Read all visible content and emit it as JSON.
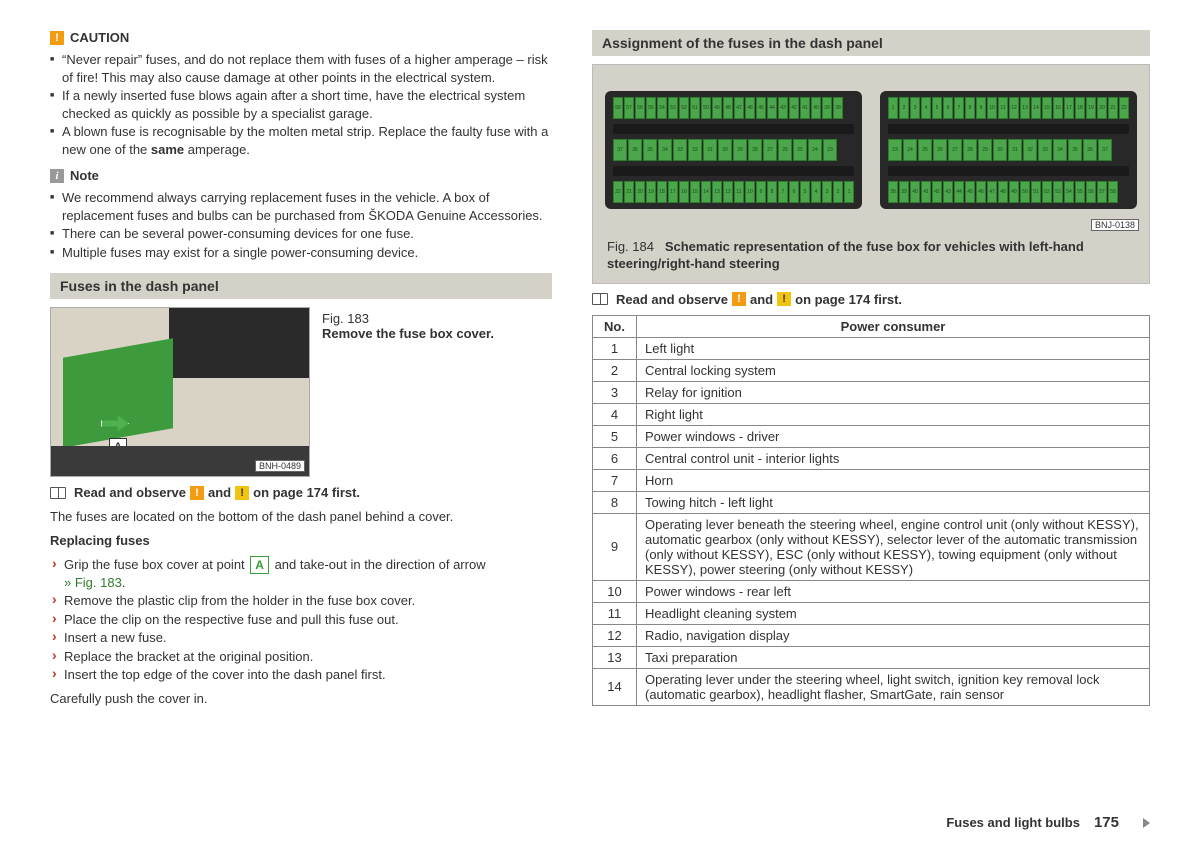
{
  "left": {
    "caution": {
      "heading": "CAUTION",
      "items": [
        "“Never repair” fuses, and do not replace them with fuses of a higher amperage – risk of fire! This may also cause damage at other points in the electrical system.",
        "If a newly inserted fuse blows again after a short time, have the electrical system checked as quickly as possible by a specialist garage.",
        "A blown fuse is recognisable by the molten metal strip. Replace the faulty fuse with a new one of the same amperage."
      ]
    },
    "note": {
      "heading": "Note",
      "items": [
        "We recommend always carrying replacement fuses in the vehicle. A box of replacement fuses and bulbs can be purchased from ŠKODA Genuine Accessories.",
        "There can be several power-consuming devices for one fuse.",
        "Multiple fuses may exist for a single power-consuming device."
      ]
    },
    "section1_title": "Fuses in the dash panel",
    "fig183": {
      "num": "Fig. 183",
      "caption": "Remove the fuse box cover.",
      "label": "BNH-0489"
    },
    "read_observe_a": "Read and observe",
    "read_observe_b": "and",
    "read_observe_c": "on page 174 first.",
    "intro": "The fuses are located on the bottom of the dash panel behind a cover.",
    "replacing_heading": "Replacing fuses",
    "step1_a": "Grip the fuse box cover at point",
    "step1_b": "and take-out in the direction of arrow",
    "step1_link": "» Fig. 183",
    "steps_rest": [
      "Remove the plastic clip from the holder in the fuse box cover.",
      "Place the clip on the respective fuse and pull this fuse out.",
      "Insert a new fuse.",
      "Replace the bracket at the original position.",
      "Insert the top edge of the cover into the dash panel first."
    ],
    "outro": "Carefully push the cover in."
  },
  "right": {
    "section2_title": "Assignment of the fuses in the dash panel",
    "fig184": {
      "num": "Fig. 184",
      "caption": "Schematic representation of the fuse box for vehicles with left-hand steering/right-hand steering",
      "label": "BNJ-0138"
    },
    "read_observe_a": "Read and observe",
    "read_observe_b": "and",
    "read_observe_c": "on page 174 first.",
    "table": {
      "headers": [
        "No.",
        "Power consumer"
      ],
      "rows": [
        [
          "1",
          "Left light"
        ],
        [
          "2",
          "Central locking system"
        ],
        [
          "3",
          "Relay for ignition"
        ],
        [
          "4",
          "Right light"
        ],
        [
          "5",
          "Power windows - driver"
        ],
        [
          "6",
          "Central control unit - interior lights"
        ],
        [
          "7",
          "Horn"
        ],
        [
          "8",
          "Towing hitch - left light"
        ],
        [
          "9",
          "Operating lever beneath the steering wheel, engine control unit (only without KESSY), automatic gearbox (only without KESSY), selector lever of the automatic transmission (only without KESSY), ESC (only without KESSY), towing equipment (only without KESSY), power steering (only without KESSY)"
        ],
        [
          "10",
          "Power windows - rear left"
        ],
        [
          "11",
          "Headlight cleaning system"
        ],
        [
          "12",
          "Radio, navigation display"
        ],
        [
          "13",
          "Taxi preparation"
        ],
        [
          "14",
          "Operating lever under the steering wheel, light switch, ignition key removal lock (automatic gearbox), headlight flasher, SmartGate, rain sensor"
        ]
      ]
    },
    "fuse_numbers_top_left": [
      "58",
      "57",
      "56",
      "55",
      "54",
      "53",
      "52",
      "51",
      "50",
      "49",
      "48",
      "47",
      "46",
      "45",
      "44",
      "43",
      "42",
      "41",
      "40",
      "39",
      "38"
    ],
    "fuse_numbers_mid_left": [
      "37",
      "36",
      "35",
      "34",
      "33",
      "32",
      "31",
      "30",
      "29",
      "28",
      "27",
      "26",
      "25",
      "24",
      "23"
    ],
    "fuse_numbers_bot_left": [
      "22",
      "21",
      "20",
      "19",
      "18",
      "17",
      "16",
      "15",
      "14",
      "13",
      "12",
      "11",
      "10",
      "9",
      "8",
      "7",
      "6",
      "5",
      "4",
      "3",
      "2",
      "1"
    ],
    "fuse_numbers_top_right": [
      "1",
      "2",
      "3",
      "4",
      "5",
      "6",
      "7",
      "8",
      "9",
      "10",
      "11",
      "12",
      "13",
      "14",
      "15",
      "16",
      "17",
      "18",
      "19",
      "20",
      "21",
      "22"
    ],
    "fuse_numbers_mid_right": [
      "23",
      "24",
      "25",
      "26",
      "27",
      "28",
      "29",
      "30",
      "31",
      "32",
      "33",
      "34",
      "35",
      "36",
      "37"
    ],
    "fuse_numbers_bot_right": [
      "38",
      "39",
      "40",
      "41",
      "42",
      "43",
      "44",
      "45",
      "46",
      "47",
      "48",
      "49",
      "50",
      "51",
      "52",
      "53",
      "54",
      "55",
      "56",
      "57",
      "58"
    ]
  },
  "footer": {
    "section": "Fuses and light bulbs",
    "page": "175"
  }
}
